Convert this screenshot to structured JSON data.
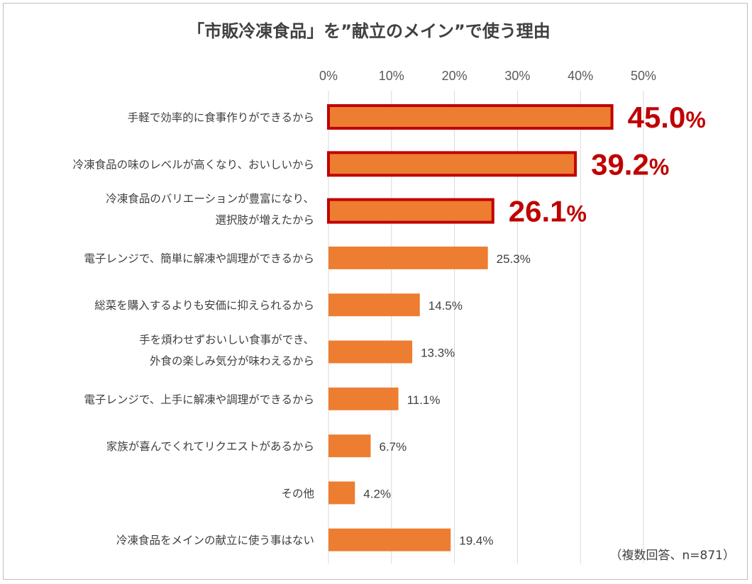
{
  "chart_data": {
    "type": "bar",
    "orientation": "horizontal",
    "title": "「市販冷凍食品」を”献立のメイン”で使う理由",
    "x_ticks": [
      "0%",
      "10%",
      "20%",
      "30%",
      "40%",
      "50%"
    ],
    "xlim": [
      0,
      50
    ],
    "grid": true,
    "categories": [
      [
        "手軽で効率的に食事作りができるから"
      ],
      [
        "冷凍食品の味のレベルが高くなり、おいしいから"
      ],
      [
        "冷凍食品のバリエーションが豊富になり、",
        "選択肢が増えたから"
      ],
      [
        "電子レンジで、簡単に解凍や調理ができるから"
      ],
      [
        "総菜を購入するよりも安価に抑えられるから"
      ],
      [
        "手を煩わせずおいしい食事ができ、",
        "外食の楽しみ気分が味わえるから"
      ],
      [
        "電子レンジで、上手に解凍や調理ができるから"
      ],
      [
        "家族が喜んでくれてリクエストがあるから"
      ],
      [
        "その他"
      ],
      [
        "冷凍食品をメインの献立に使う事はない"
      ]
    ],
    "values": [
      45.0,
      39.2,
      26.1,
      25.3,
      14.5,
      13.3,
      11.1,
      6.7,
      4.2,
      19.4
    ],
    "value_labels": [
      "45.0",
      "39.2",
      "26.1",
      "25.3%",
      "14.5%",
      "13.3%",
      "11.1%",
      "6.7%",
      "4.2%",
      "19.4%"
    ],
    "highlighted": [
      true,
      true,
      true,
      false,
      false,
      false,
      false,
      false,
      false,
      false
    ],
    "highlight_suffix": "%",
    "bar_color": "#ed7d31",
    "highlight_color": "#c00000",
    "note": "（複数回答、n=871）"
  }
}
